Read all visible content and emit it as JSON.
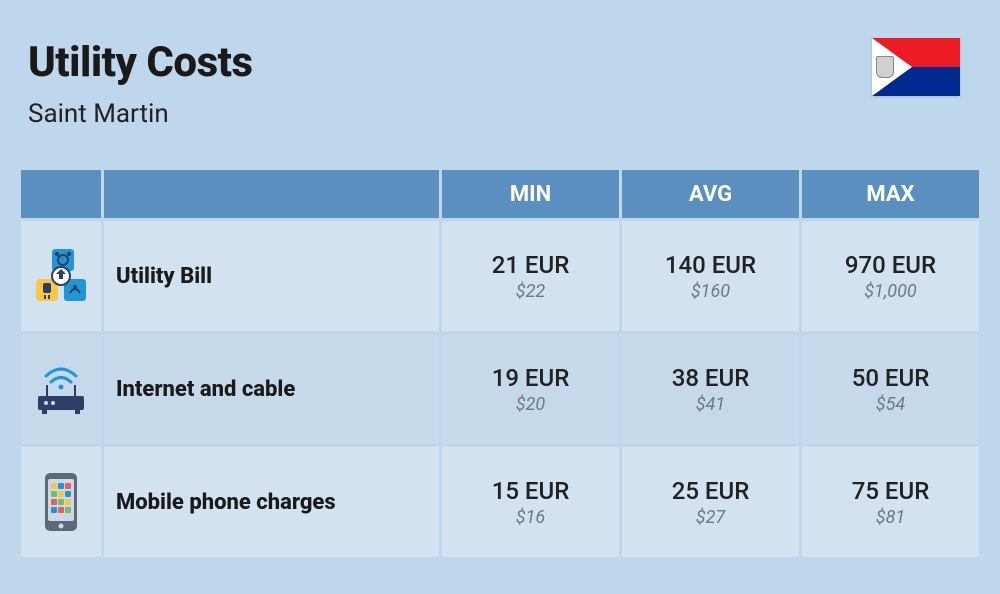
{
  "header": {
    "title": "Utility Costs",
    "subtitle": "Saint Martin"
  },
  "columns": [
    "MIN",
    "AVG",
    "MAX"
  ],
  "rows": [
    {
      "icon": "utility",
      "label": "Utility Bill",
      "min": {
        "eur": "21 EUR",
        "usd": "$22"
      },
      "avg": {
        "eur": "140 EUR",
        "usd": "$160"
      },
      "max": {
        "eur": "970 EUR",
        "usd": "$1,000"
      }
    },
    {
      "icon": "router",
      "label": "Internet and cable",
      "min": {
        "eur": "19 EUR",
        "usd": "$20"
      },
      "avg": {
        "eur": "38 EUR",
        "usd": "$41"
      },
      "max": {
        "eur": "50 EUR",
        "usd": "$54"
      }
    },
    {
      "icon": "phone",
      "label": "Mobile phone charges",
      "min": {
        "eur": "15 EUR",
        "usd": "$16"
      },
      "avg": {
        "eur": "25 EUR",
        "usd": "$27"
      },
      "max": {
        "eur": "75 EUR",
        "usd": "$81"
      }
    }
  ],
  "colors": {
    "page_bg": "#bfd7ec",
    "header_cell": "#5b8fc0",
    "row_even": "#d3e2f0",
    "row_odd": "#c6d9eb",
    "title_text": "#1a1a1a",
    "body_text": "#222222",
    "sub_text": "#6c7a87",
    "icon_blue": "#2196d6",
    "icon_navy": "#2d3e66",
    "icon_yellow": "#f9c744",
    "icon_gray": "#5a6a7a",
    "icon_light": "#cfd8e2"
  }
}
